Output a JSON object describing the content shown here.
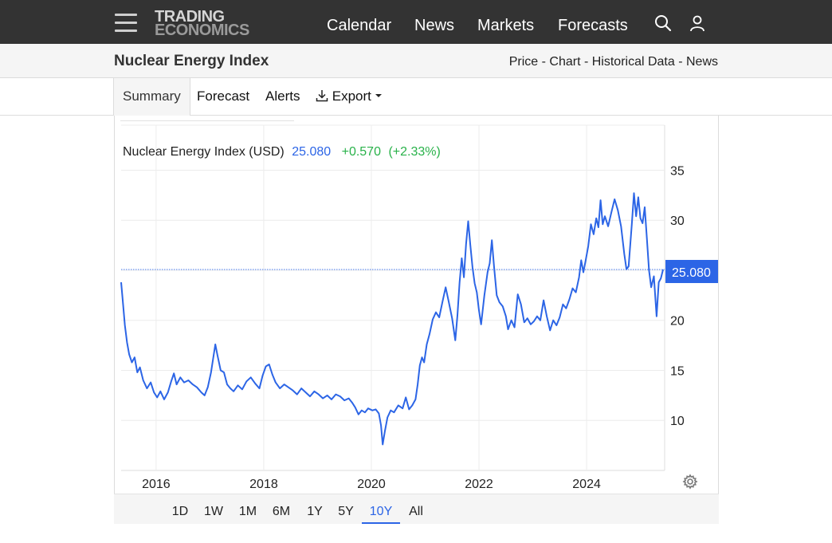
{
  "header": {
    "logo_line1": "TRADING",
    "logo_line2": "ECONOMICS",
    "nav": [
      "Calendar",
      "News",
      "Markets",
      "Forecasts"
    ],
    "icons": [
      "menu-icon",
      "search-icon",
      "user-icon"
    ]
  },
  "subheader": {
    "title": "Nuclear Energy Index",
    "links": [
      "Price",
      "Chart",
      "Historical Data",
      "News"
    ],
    "separator": " - "
  },
  "tabs": {
    "summary": "Summary",
    "forecast": "Forecast",
    "alerts": "Alerts",
    "export": "Export"
  },
  "quote": {
    "name": "Nuclear Energy Index (USD)",
    "price": "25.080",
    "change": "+0.570",
    "change_pct": "(+2.33%)",
    "colors": {
      "price": "#2c65e6",
      "change": "#29b24a"
    }
  },
  "range_buttons": [
    "1D",
    "1W",
    "1M",
    "6M",
    "1Y",
    "5Y",
    "10Y",
    "All"
  ],
  "range_selected": "10Y",
  "chart_data": {
    "type": "line",
    "title": "",
    "xlabel": "",
    "ylabel": "",
    "x_ticks": [
      "2016",
      "2018",
      "2020",
      "2022",
      "2024"
    ],
    "y_ticks": [
      10,
      15,
      20,
      25,
      30,
      35
    ],
    "y_tick_labels": [
      "10",
      "15",
      "20",
      "",
      "30",
      "35"
    ],
    "xlim": [
      2015.35,
      2025.45
    ],
    "ylim": [
      5,
      39.5
    ],
    "grid": true,
    "last_value_label": "25.080",
    "last_value": 25.08,
    "series": [
      {
        "color": "#2c65e6",
        "points": [
          [
            2015.35,
            23.8
          ],
          [
            2015.38,
            22.0
          ],
          [
            2015.42,
            19.5
          ],
          [
            2015.46,
            17.8
          ],
          [
            2015.5,
            16.6
          ],
          [
            2015.55,
            15.8
          ],
          [
            2015.6,
            16.3
          ],
          [
            2015.65,
            14.8
          ],
          [
            2015.7,
            15.3
          ],
          [
            2015.76,
            14.0
          ],
          [
            2015.83,
            13.2
          ],
          [
            2015.9,
            13.8
          ],
          [
            2015.96,
            12.8
          ],
          [
            2016.02,
            12.3
          ],
          [
            2016.08,
            12.9
          ],
          [
            2016.15,
            12.1
          ],
          [
            2016.22,
            12.8
          ],
          [
            2016.28,
            13.9
          ],
          [
            2016.33,
            14.7
          ],
          [
            2016.38,
            13.6
          ],
          [
            2016.45,
            14.3
          ],
          [
            2016.52,
            13.8
          ],
          [
            2016.6,
            14.0
          ],
          [
            2016.68,
            13.6
          ],
          [
            2016.76,
            13.3
          ],
          [
            2016.84,
            12.8
          ],
          [
            2016.9,
            12.5
          ],
          [
            2016.96,
            13.3
          ],
          [
            2017.02,
            14.8
          ],
          [
            2017.06,
            16.2
          ],
          [
            2017.1,
            17.6
          ],
          [
            2017.14,
            16.5
          ],
          [
            2017.2,
            15.0
          ],
          [
            2017.26,
            14.8
          ],
          [
            2017.32,
            13.6
          ],
          [
            2017.38,
            13.2
          ],
          [
            2017.44,
            12.9
          ],
          [
            2017.52,
            13.5
          ],
          [
            2017.6,
            13.1
          ],
          [
            2017.68,
            13.9
          ],
          [
            2017.76,
            14.3
          ],
          [
            2017.84,
            13.7
          ],
          [
            2017.92,
            13.2
          ],
          [
            2017.98,
            14.5
          ],
          [
            2018.04,
            15.4
          ],
          [
            2018.1,
            15.6
          ],
          [
            2018.16,
            14.6
          ],
          [
            2018.22,
            13.8
          ],
          [
            2018.3,
            13.2
          ],
          [
            2018.38,
            13.6
          ],
          [
            2018.46,
            13.3
          ],
          [
            2018.54,
            13.0
          ],
          [
            2018.62,
            12.6
          ],
          [
            2018.7,
            13.2
          ],
          [
            2018.78,
            12.8
          ],
          [
            2018.86,
            12.4
          ],
          [
            2018.94,
            12.9
          ],
          [
            2019.02,
            12.6
          ],
          [
            2019.1,
            12.2
          ],
          [
            2019.18,
            12.5
          ],
          [
            2019.26,
            12.1
          ],
          [
            2019.34,
            12.6
          ],
          [
            2019.42,
            12.4
          ],
          [
            2019.5,
            12.0
          ],
          [
            2019.58,
            12.2
          ],
          [
            2019.64,
            11.8
          ],
          [
            2019.7,
            11.3
          ],
          [
            2019.76,
            10.6
          ],
          [
            2019.82,
            11.0
          ],
          [
            2019.88,
            10.8
          ],
          [
            2019.94,
            11.2
          ],
          [
            2020.02,
            11.0
          ],
          [
            2020.08,
            11.1
          ],
          [
            2020.14,
            10.7
          ],
          [
            2020.18,
            9.5
          ],
          [
            2020.21,
            7.6
          ],
          [
            2020.25,
            8.9
          ],
          [
            2020.3,
            10.3
          ],
          [
            2020.36,
            11.0
          ],
          [
            2020.42,
            10.8
          ],
          [
            2020.5,
            11.5
          ],
          [
            2020.58,
            11.2
          ],
          [
            2020.64,
            12.3
          ],
          [
            2020.7,
            11.1
          ],
          [
            2020.76,
            11.5
          ],
          [
            2020.82,
            12.1
          ],
          [
            2020.86,
            13.6
          ],
          [
            2020.9,
            15.5
          ],
          [
            2020.94,
            16.3
          ],
          [
            2020.98,
            15.8
          ],
          [
            2021.03,
            17.6
          ],
          [
            2021.08,
            18.6
          ],
          [
            2021.14,
            20.1
          ],
          [
            2021.2,
            20.8
          ],
          [
            2021.26,
            20.3
          ],
          [
            2021.32,
            21.8
          ],
          [
            2021.38,
            23.3
          ],
          [
            2021.44,
            21.8
          ],
          [
            2021.5,
            20.2
          ],
          [
            2021.56,
            18.0
          ],
          [
            2021.6,
            20.5
          ],
          [
            2021.64,
            23.8
          ],
          [
            2021.68,
            26.2
          ],
          [
            2021.72,
            24.3
          ],
          [
            2021.76,
            27.6
          ],
          [
            2021.8,
            29.9
          ],
          [
            2021.84,
            27.5
          ],
          [
            2021.88,
            25.3
          ],
          [
            2021.92,
            23.7
          ],
          [
            2021.96,
            22.8
          ],
          [
            2022.0,
            21.0
          ],
          [
            2022.04,
            19.6
          ],
          [
            2022.1,
            22.5
          ],
          [
            2022.16,
            24.8
          ],
          [
            2022.2,
            25.7
          ],
          [
            2022.24,
            28.0
          ],
          [
            2022.28,
            25.4
          ],
          [
            2022.33,
            22.5
          ],
          [
            2022.38,
            21.8
          ],
          [
            2022.44,
            21.4
          ],
          [
            2022.5,
            20.4
          ],
          [
            2022.54,
            19.1
          ],
          [
            2022.6,
            20.0
          ],
          [
            2022.66,
            19.3
          ],
          [
            2022.72,
            22.6
          ],
          [
            2022.78,
            21.6
          ],
          [
            2022.84,
            19.8
          ],
          [
            2022.9,
            20.2
          ],
          [
            2022.96,
            19.6
          ],
          [
            2023.02,
            19.9
          ],
          [
            2023.08,
            20.4
          ],
          [
            2023.14,
            20.0
          ],
          [
            2023.2,
            22.0
          ],
          [
            2023.26,
            20.4
          ],
          [
            2023.32,
            19.0
          ],
          [
            2023.38,
            20.0
          ],
          [
            2023.44,
            19.5
          ],
          [
            2023.5,
            20.3
          ],
          [
            2023.56,
            21.6
          ],
          [
            2023.62,
            21.2
          ],
          [
            2023.68,
            22.1
          ],
          [
            2023.74,
            23.2
          ],
          [
            2023.8,
            22.8
          ],
          [
            2023.86,
            24.3
          ],
          [
            2023.9,
            26.0
          ],
          [
            2023.94,
            24.8
          ],
          [
            2023.98,
            25.9
          ],
          [
            2024.03,
            27.4
          ],
          [
            2024.08,
            29.6
          ],
          [
            2024.13,
            28.6
          ],
          [
            2024.18,
            30.2
          ],
          [
            2024.22,
            29.3
          ],
          [
            2024.26,
            32.0
          ],
          [
            2024.3,
            29.6
          ],
          [
            2024.34,
            30.4
          ],
          [
            2024.4,
            29.4
          ],
          [
            2024.46,
            30.8
          ],
          [
            2024.52,
            32.1
          ],
          [
            2024.58,
            31.0
          ],
          [
            2024.64,
            29.4
          ],
          [
            2024.7,
            26.6
          ],
          [
            2024.74,
            25.1
          ],
          [
            2024.78,
            25.4
          ],
          [
            2024.84,
            29.6
          ],
          [
            2024.88,
            32.7
          ],
          [
            2024.92,
            30.4
          ],
          [
            2024.96,
            32.3
          ],
          [
            2025.0,
            30.2
          ],
          [
            2025.04,
            29.7
          ],
          [
            2025.08,
            31.3
          ],
          [
            2025.12,
            28.2
          ],
          [
            2025.16,
            25.0
          ],
          [
            2025.2,
            23.3
          ],
          [
            2025.25,
            24.4
          ],
          [
            2025.3,
            20.4
          ],
          [
            2025.34,
            23.8
          ],
          [
            2025.38,
            24.2
          ],
          [
            2025.42,
            25.08
          ]
        ]
      }
    ]
  }
}
